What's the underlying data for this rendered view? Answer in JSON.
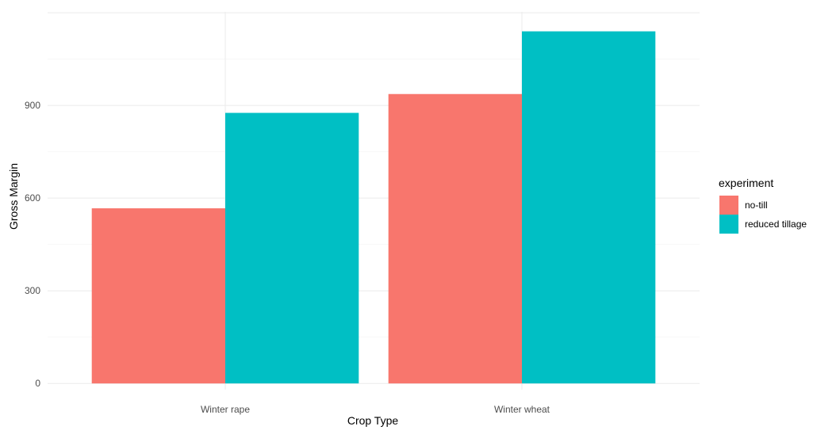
{
  "chart_data": {
    "type": "bar",
    "title": "",
    "xlabel": "Crop Type",
    "ylabel": "Gross Margin",
    "categories": [
      "Winter rape",
      "Winter wheat"
    ],
    "series": [
      {
        "name": "no-till",
        "values": [
          567,
          937
        ],
        "color": "#F8766D"
      },
      {
        "name": "reduced tillage",
        "values": [
          876,
          1140
        ],
        "color": "#00BFC4"
      }
    ],
    "yticks": [
      0,
      300,
      600,
      900
    ],
    "ylim": [
      -20,
      1203
    ],
    "grid": true,
    "legend": {
      "title": "experiment",
      "position": "right"
    }
  },
  "colors": {
    "grid_major": "#ebebeb",
    "grid_minor": "#f5f5f5",
    "background": "#ffffff"
  }
}
